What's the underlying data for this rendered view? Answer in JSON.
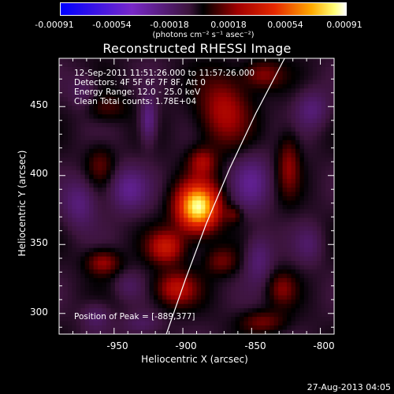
{
  "colorbar": {
    "ticks": [
      "-0.00091",
      "-0.00054",
      "-0.00018",
      "0.00018",
      "0.00054",
      "0.00091"
    ],
    "unit_label": "(photons cm⁻² s⁻¹ asec⁻²)"
  },
  "chart_data": {
    "type": "heatmap",
    "title": "Reconstructed RHESSI Image",
    "xlabel": "Heliocentric X (arcsec)",
    "ylabel": "Heliocentric Y (arcsec)",
    "xlim": [
      -990,
      -790
    ],
    "ylim": [
      285,
      485
    ],
    "x_ticks": [
      "-950",
      "-900",
      "-850",
      "-800"
    ],
    "y_ticks": [
      "300",
      "350",
      "400",
      "450"
    ],
    "color_range": [
      -0.00091,
      0.00091
    ],
    "peak": {
      "x": -889,
      "y": 377
    },
    "limb_curve": [
      [
        -912,
        285
      ],
      [
        -898,
        325
      ],
      [
        -883,
        365
      ],
      [
        -866,
        405
      ],
      [
        -847,
        445
      ],
      [
        -826,
        485
      ]
    ],
    "sources": [
      {
        "x": -889,
        "y": 377,
        "rx": 15,
        "ry": 17,
        "amp": 1.0
      },
      {
        "x": -912,
        "y": 348,
        "rx": 13,
        "ry": 12,
        "amp": 0.42
      },
      {
        "x": -905,
        "y": 318,
        "rx": 15,
        "ry": 12,
        "amp": 0.38
      },
      {
        "x": -958,
        "y": 337,
        "rx": 12,
        "ry": 9,
        "amp": 0.3
      },
      {
        "x": -870,
        "y": 447,
        "rx": 18,
        "ry": 25,
        "amp": 0.34
      },
      {
        "x": -886,
        "y": 410,
        "rx": 10,
        "ry": 10,
        "amp": 0.3
      },
      {
        "x": -842,
        "y": 473,
        "rx": 14,
        "ry": 10,
        "amp": 0.26
      },
      {
        "x": -823,
        "y": 408,
        "rx": 8,
        "ry": 22,
        "amp": 0.26
      },
      {
        "x": -872,
        "y": 338,
        "rx": 12,
        "ry": 10,
        "amp": 0.22
      },
      {
        "x": -828,
        "y": 318,
        "rx": 10,
        "ry": 12,
        "amp": 0.22
      },
      {
        "x": -842,
        "y": 294,
        "rx": 16,
        "ry": 8,
        "amp": 0.22
      },
      {
        "x": -960,
        "y": 408,
        "rx": 10,
        "ry": 14,
        "amp": 0.18
      },
      {
        "x": -956,
        "y": 449,
        "rx": 16,
        "ry": 10,
        "amp": 0.16
      },
      {
        "x": -863,
        "y": 372,
        "rx": 6,
        "ry": 6,
        "amp": 0.18
      },
      {
        "x": -925,
        "y": 440,
        "rx": 6,
        "ry": 16,
        "amp": -0.28
      },
      {
        "x": -940,
        "y": 390,
        "rx": 14,
        "ry": 16,
        "amp": -0.26
      },
      {
        "x": -975,
        "y": 380,
        "rx": 12,
        "ry": 18,
        "amp": -0.22
      },
      {
        "x": -850,
        "y": 395,
        "rx": 14,
        "ry": 20,
        "amp": -0.24
      },
      {
        "x": -806,
        "y": 448,
        "rx": 12,
        "ry": 14,
        "amp": -0.2
      },
      {
        "x": -845,
        "y": 340,
        "rx": 10,
        "ry": 18,
        "amp": -0.2
      },
      {
        "x": -930,
        "y": 292,
        "rx": 14,
        "ry": 8,
        "amp": -0.14
      },
      {
        "x": -963,
        "y": 298,
        "rx": 10,
        "ry": 10,
        "amp": -0.16
      },
      {
        "x": -972,
        "y": 460,
        "rx": 10,
        "ry": 14,
        "amp": -0.14
      },
      {
        "x": -808,
        "y": 350,
        "rx": 10,
        "ry": 14,
        "amp": -0.14
      },
      {
        "x": -940,
        "y": 320,
        "rx": 10,
        "ry": 10,
        "amp": -0.12
      }
    ]
  },
  "info": {
    "time": "12-Sep-2011 11:51:26.000 to 11:57:26.000",
    "detectors": "Detectors: 4F 5F 6F 7F 8F, Att 0",
    "energy": "Energy Range: 12.0 - 25.0 keV",
    "clean": "Clean     Total counts: 1.78E+04",
    "peak": "Position of Peak = [-889,377]"
  },
  "footer": "27-Aug-2013 04:05"
}
